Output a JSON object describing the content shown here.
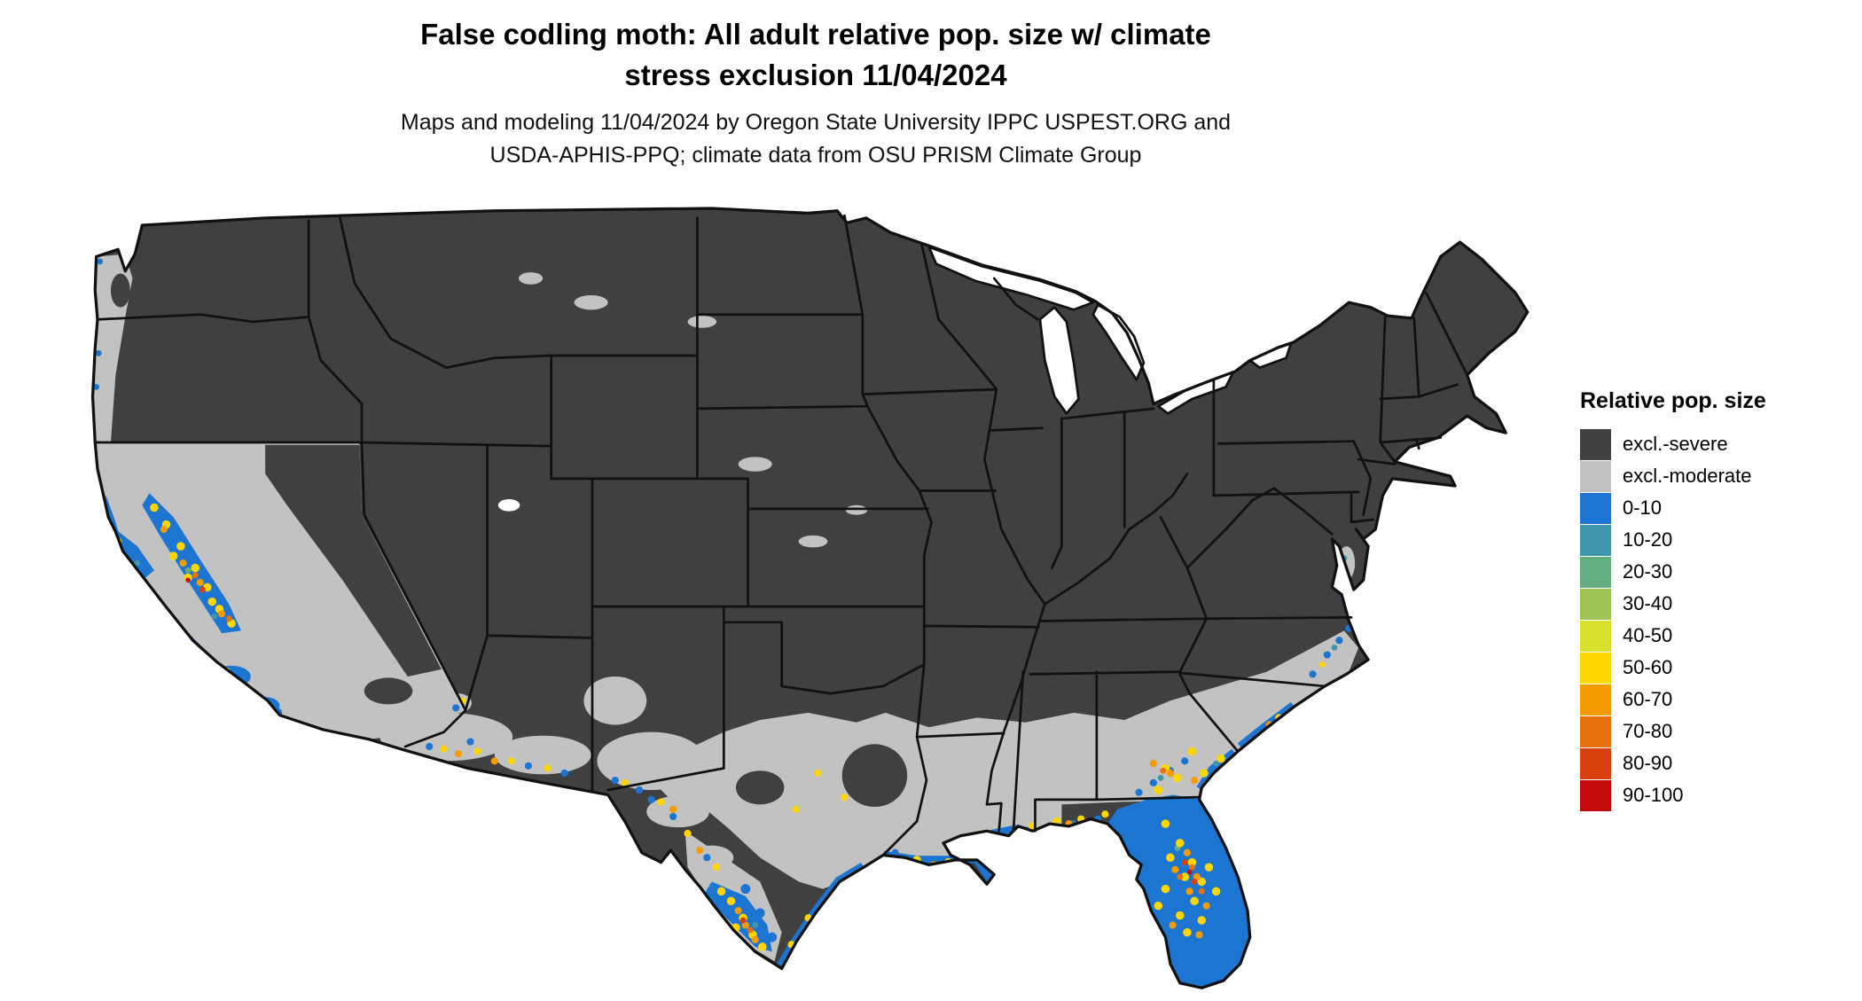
{
  "header": {
    "title_line1": "False codling moth: All adult relative pop. size w/ climate",
    "title_line2": "stress exclusion 11/04/2024",
    "subtitle_line1": "Maps and modeling 11/04/2024 by Oregon State University IPPC USPEST.ORG and",
    "subtitle_line2": "USDA-APHIS-PPQ; climate data from OSU PRISM Climate Group"
  },
  "map": {
    "type": "choropleth-map",
    "region": "Continental United States",
    "base_class": "excl.-severe"
  },
  "legend": {
    "title": "Relative pop. size",
    "entries": [
      {
        "label": "excl.-severe",
        "color": "#404040"
      },
      {
        "label": "excl.-moderate",
        "color": "#c2c2c2"
      },
      {
        "label": "0-10",
        "color": "#1b75d1"
      },
      {
        "label": "10-20",
        "color": "#3f97ac"
      },
      {
        "label": "20-30",
        "color": "#63ad7e"
      },
      {
        "label": "30-40",
        "color": "#9cc353"
      },
      {
        "label": "40-50",
        "color": "#d9e02e"
      },
      {
        "label": "50-60",
        "color": "#ffd700"
      },
      {
        "label": "60-70",
        "color": "#f39c00"
      },
      {
        "label": "70-80",
        "color": "#e8710d"
      },
      {
        "label": "80-90",
        "color": "#d8400e"
      },
      {
        "label": "90-100",
        "color": "#c30b0b"
      }
    ]
  }
}
